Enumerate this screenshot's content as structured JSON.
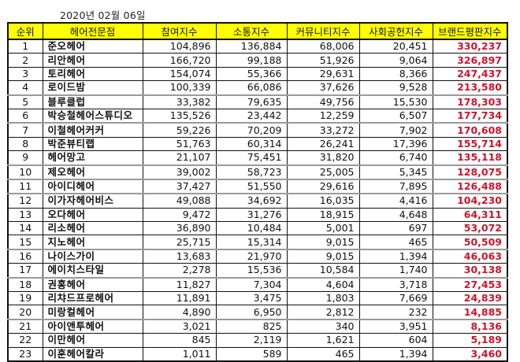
{
  "date_label": "2020년 02월 06일",
  "table": {
    "headers": [
      "순위",
      "헤어전문점",
      "참여지수",
      "소통지수",
      "커뮤니티지수",
      "사회공헌지수",
      "브랜드평판지수"
    ],
    "rows": [
      {
        "rank": "1",
        "name": "준오헤어",
        "participation": "104,896",
        "communication": "136,884",
        "community": "68,006",
        "social": "20,451",
        "brand": "330,237"
      },
      {
        "rank": "2",
        "name": "리안헤어",
        "participation": "166,720",
        "communication": "99,188",
        "community": "51,926",
        "social": "9,064",
        "brand": "326,897"
      },
      {
        "rank": "3",
        "name": "토리헤어",
        "participation": "154,074",
        "communication": "55,366",
        "community": "29,631",
        "social": "8,366",
        "brand": "247,437"
      },
      {
        "rank": "4",
        "name": "로이드밤",
        "participation": "100,339",
        "communication": "66,086",
        "community": "37,626",
        "social": "9,528",
        "brand": "213,580"
      },
      {
        "rank": "5",
        "name": "블루클럽",
        "participation": "33,382",
        "communication": "79,635",
        "community": "49,756",
        "social": "15,530",
        "brand": "178,303"
      },
      {
        "rank": "6",
        "name": "박승철헤어스튜디오",
        "participation": "135,526",
        "communication": "23,442",
        "community": "12,259",
        "social": "6,507",
        "brand": "177,734"
      },
      {
        "rank": "7",
        "name": "이철헤어커커",
        "participation": "59,226",
        "communication": "70,209",
        "community": "33,272",
        "social": "7,902",
        "brand": "170,608"
      },
      {
        "rank": "8",
        "name": "박준뷰티랩",
        "participation": "51,763",
        "communication": "60,314",
        "community": "26,241",
        "social": "17,396",
        "brand": "155,714"
      },
      {
        "rank": "9",
        "name": "헤어망고",
        "participation": "21,107",
        "communication": "75,451",
        "community": "31,820",
        "social": "6,740",
        "brand": "135,118"
      },
      {
        "rank": "10",
        "name": "제오헤어",
        "participation": "39,002",
        "communication": "58,723",
        "community": "25,005",
        "social": "5,345",
        "brand": "128,075"
      },
      {
        "rank": "11",
        "name": "아이디헤어",
        "participation": "37,427",
        "communication": "51,550",
        "community": "29,616",
        "social": "7,895",
        "brand": "126,488"
      },
      {
        "rank": "12",
        "name": "이가자헤어비스",
        "participation": "49,088",
        "communication": "34,692",
        "community": "16,035",
        "social": "4,416",
        "brand": "104,230"
      },
      {
        "rank": "13",
        "name": "오다헤어",
        "participation": "9,472",
        "communication": "31,276",
        "community": "18,915",
        "social": "4,648",
        "brand": "64,311"
      },
      {
        "rank": "14",
        "name": "리소헤어",
        "participation": "36,890",
        "communication": "10,484",
        "community": "5,001",
        "social": "697",
        "brand": "53,072"
      },
      {
        "rank": "15",
        "name": "지노헤어",
        "participation": "25,715",
        "communication": "15,314",
        "community": "9,015",
        "social": "465",
        "brand": "50,509"
      },
      {
        "rank": "16",
        "name": "나이스가이",
        "participation": "13,683",
        "communication": "21,970",
        "community": "9,015",
        "social": "1,394",
        "brand": "46,063"
      },
      {
        "rank": "17",
        "name": "에이치스타일",
        "participation": "2,278",
        "communication": "15,536",
        "community": "10,584",
        "social": "1,740",
        "brand": "30,138"
      },
      {
        "rank": "18",
        "name": "권홍헤어",
        "participation": "11,827",
        "communication": "7,304",
        "community": "4,604",
        "social": "3,718",
        "brand": "27,453"
      },
      {
        "rank": "19",
        "name": "리챠드프로헤어",
        "participation": "11,891",
        "communication": "3,475",
        "community": "1,803",
        "social": "7,669",
        "brand": "24,839"
      },
      {
        "rank": "20",
        "name": "미랑컬헤어",
        "participation": "4,890",
        "communication": "6,950",
        "community": "2,812",
        "social": "232",
        "brand": "14,885"
      },
      {
        "rank": "21",
        "name": "아이앤투헤어",
        "participation": "3,021",
        "communication": "825",
        "community": "340",
        "social": "3,951",
        "brand": "8,136"
      },
      {
        "rank": "22",
        "name": "이만헤어",
        "participation": "845",
        "communication": "2,119",
        "community": "1,621",
        "social": "604",
        "brand": "5,189"
      },
      {
        "rank": "23",
        "name": "이훈헤어칼라",
        "participation": "1,011",
        "communication": "589",
        "community": "465",
        "social": "1,394",
        "brand": "3,460"
      }
    ]
  },
  "colors": {
    "header_bg": "#ffff00",
    "brand_score_text": "#d0142a",
    "border": "#111111",
    "gray_separator": "#9a9a9a"
  }
}
